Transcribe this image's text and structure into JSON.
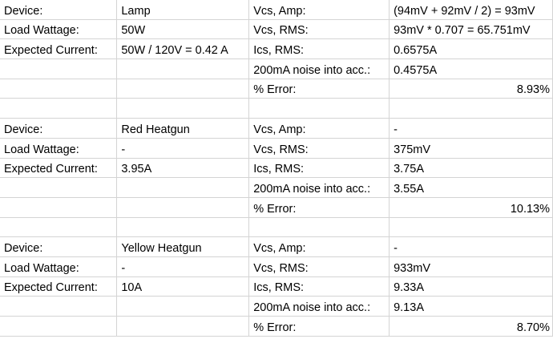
{
  "blocks": [
    {
      "rows": [
        [
          "Device:",
          "Lamp",
          "Vcs, Amp:",
          "(94mV + 92mV / 2) = 93mV"
        ],
        [
          "Load Wattage:",
          "50W",
          "Vcs, RMS:",
          "93mV * 0.707 = 65.751mV"
        ],
        [
          "Expected Current:",
          "50W / 120V = 0.42 A",
          "Ics, RMS:",
          "0.6575A"
        ],
        [
          "",
          "",
          "200mA noise into acc.:",
          "0.4575A"
        ],
        [
          "",
          "",
          "% Error:",
          "8.93%"
        ]
      ]
    },
    {
      "rows": [
        [
          "Device:",
          "Red Heatgun",
          "Vcs, Amp:",
          "-"
        ],
        [
          "Load Wattage:",
          "-",
          "Vcs, RMS:",
          "375mV"
        ],
        [
          "Expected Current:",
          "3.95A",
          "Ics, RMS:",
          "3.75A"
        ],
        [
          "",
          "",
          "200mA noise into acc.:",
          "3.55A"
        ],
        [
          "",
          "",
          "% Error:",
          "10.13%"
        ]
      ]
    },
    {
      "rows": [
        [
          "Device:",
          "Yellow Heatgun",
          "Vcs, Amp:",
          "-"
        ],
        [
          "Load Wattage:",
          "-",
          "Vcs, RMS:",
          "933mV"
        ],
        [
          "Expected Current:",
          "10A",
          "Ics, RMS:",
          "9.33A"
        ],
        [
          "",
          "",
          "200mA noise into acc.:",
          "9.13A"
        ],
        [
          "",
          "",
          "% Error:",
          "8.70%"
        ]
      ]
    }
  ]
}
